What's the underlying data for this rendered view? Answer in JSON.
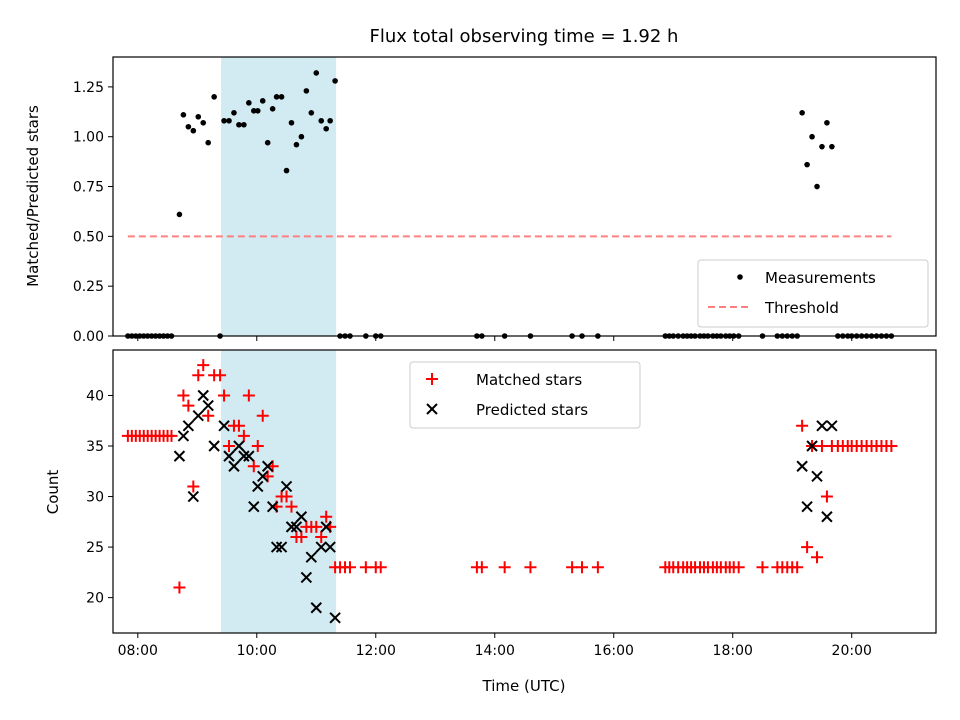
{
  "chart_data": [
    {
      "type": "scatter",
      "title": "Flux total observing time = 1.92 h",
      "xlabel": "",
      "ylabel": "Matched/Predicted stars",
      "ylim": [
        0,
        1.4
      ],
      "xlim": [
        "07:35",
        "21:25"
      ],
      "x_ticks": [
        "08:00",
        "10:00",
        "12:00",
        "14:00",
        "16:00",
        "18:00",
        "20:00"
      ],
      "y_ticks": [
        "0.00",
        "0.25",
        "0.50",
        "0.75",
        "1.00",
        "1.25"
      ],
      "shaded_region": {
        "from": "09:24",
        "to": "11:20",
        "color": "#add8e6"
      },
      "legend_position": "lower right",
      "series": [
        {
          "name": "Measurements",
          "marker": "dot",
          "color": "#000000",
          "points": [
            [
              "07:50",
              0
            ],
            [
              "07:54",
              0
            ],
            [
              "07:58",
              0
            ],
            [
              "08:02",
              0
            ],
            [
              "08:06",
              0
            ],
            [
              "08:10",
              0
            ],
            [
              "08:14",
              0
            ],
            [
              "08:18",
              0
            ],
            [
              "08:22",
              0
            ],
            [
              "08:26",
              0
            ],
            [
              "08:30",
              0
            ],
            [
              "08:34",
              0
            ],
            [
              "08:42",
              0.61
            ],
            [
              "08:46",
              1.11
            ],
            [
              "08:51",
              1.05
            ],
            [
              "08:56",
              1.03
            ],
            [
              "09:01",
              1.1
            ],
            [
              "09:06",
              1.07
            ],
            [
              "09:11",
              0.97
            ],
            [
              "09:17",
              1.2
            ],
            [
              "09:23",
              0
            ],
            [
              "09:27",
              1.08
            ],
            [
              "09:32",
              1.08
            ],
            [
              "09:37",
              1.12
            ],
            [
              "09:42",
              1.06
            ],
            [
              "09:47",
              1.06
            ],
            [
              "09:52",
              1.17
            ],
            [
              "09:57",
              1.13
            ],
            [
              "10:01",
              1.13
            ],
            [
              "10:06",
              1.18
            ],
            [
              "10:11",
              0.97
            ],
            [
              "10:16",
              1.14
            ],
            [
              "10:20",
              1.2
            ],
            [
              "10:25",
              1.2
            ],
            [
              "10:30",
              0.83
            ],
            [
              "10:35",
              1.07
            ],
            [
              "10:40",
              0.96
            ],
            [
              "10:45",
              1.0
            ],
            [
              "10:50",
              1.23
            ],
            [
              "10:55",
              1.12
            ],
            [
              "11:00",
              1.32
            ],
            [
              "11:05",
              1.08
            ],
            [
              "11:10",
              1.04
            ],
            [
              "11:14",
              1.08
            ],
            [
              "11:19",
              1.28
            ],
            [
              "11:24",
              0
            ],
            [
              "11:29",
              0
            ],
            [
              "11:34",
              0
            ],
            [
              "11:50",
              0
            ],
            [
              "12:00",
              0
            ],
            [
              "12:05",
              0
            ],
            [
              "13:42",
              0
            ],
            [
              "13:47",
              0
            ],
            [
              "14:10",
              0
            ],
            [
              "14:36",
              0
            ],
            [
              "15:18",
              0
            ],
            [
              "15:28",
              0
            ],
            [
              "15:44",
              0
            ],
            [
              "16:52",
              0
            ],
            [
              "16:56",
              0
            ],
            [
              "17:00",
              0
            ],
            [
              "17:05",
              0
            ],
            [
              "17:10",
              0
            ],
            [
              "17:14",
              0
            ],
            [
              "17:18",
              0
            ],
            [
              "17:22",
              0
            ],
            [
              "17:27",
              0
            ],
            [
              "17:31",
              0
            ],
            [
              "17:35",
              0
            ],
            [
              "17:40",
              0
            ],
            [
              "17:44",
              0
            ],
            [
              "17:48",
              0
            ],
            [
              "17:53",
              0
            ],
            [
              "17:57",
              0
            ],
            [
              "18:01",
              0
            ],
            [
              "18:06",
              0
            ],
            [
              "18:30",
              0
            ],
            [
              "18:45",
              0
            ],
            [
              "18:50",
              0
            ],
            [
              "18:55",
              0
            ],
            [
              "19:00",
              0
            ],
            [
              "19:05",
              0
            ],
            [
              "19:10",
              1.12
            ],
            [
              "19:15",
              0.86
            ],
            [
              "19:20",
              1.0
            ],
            [
              "19:25",
              0.75
            ],
            [
              "19:30",
              0.95
            ],
            [
              "19:35",
              1.07
            ],
            [
              "19:40",
              0.95
            ],
            [
              "19:46",
              0
            ],
            [
              "19:51",
              0
            ],
            [
              "19:56",
              0
            ],
            [
              "20:00",
              0
            ],
            [
              "20:05",
              0
            ],
            [
              "20:10",
              0
            ],
            [
              "20:15",
              0
            ],
            [
              "20:20",
              0
            ],
            [
              "20:25",
              0
            ],
            [
              "20:30",
              0
            ],
            [
              "20:35",
              0
            ],
            [
              "20:40",
              0
            ]
          ]
        },
        {
          "name": "Threshold",
          "marker": "dashed-line",
          "color": "#ff8080",
          "points": [
            [
              "07:50",
              0.5
            ],
            [
              "20:40",
              0.5
            ]
          ]
        }
      ]
    },
    {
      "type": "scatter",
      "title": "",
      "xlabel": "Time (UTC)",
      "ylabel": "Count",
      "ylim": [
        16.5,
        44.5
      ],
      "xlim": [
        "07:35",
        "21:25"
      ],
      "x_ticks": [
        "08:00",
        "10:00",
        "12:00",
        "14:00",
        "16:00",
        "18:00",
        "20:00"
      ],
      "y_ticks": [
        "20",
        "25",
        "30",
        "35",
        "40"
      ],
      "shaded_region": {
        "from": "09:24",
        "to": "11:20",
        "color": "#add8e6"
      },
      "legend_position": "upper center",
      "series": [
        {
          "name": "Matched stars",
          "marker": "plus",
          "color": "#ff0000",
          "points": [
            [
              "07:50",
              36
            ],
            [
              "07:54",
              36
            ],
            [
              "07:58",
              36
            ],
            [
              "08:02",
              36
            ],
            [
              "08:06",
              36
            ],
            [
              "08:10",
              36
            ],
            [
              "08:14",
              36
            ],
            [
              "08:18",
              36
            ],
            [
              "08:22",
              36
            ],
            [
              "08:26",
              36
            ],
            [
              "08:30",
              36
            ],
            [
              "08:34",
              36
            ],
            [
              "08:42",
              21
            ],
            [
              "08:46",
              40
            ],
            [
              "08:51",
              39
            ],
            [
              "08:56",
              31
            ],
            [
              "09:01",
              42
            ],
            [
              "09:06",
              43
            ],
            [
              "09:11",
              38
            ],
            [
              "09:17",
              42
            ],
            [
              "09:23",
              42
            ],
            [
              "09:27",
              40
            ],
            [
              "09:32",
              35
            ],
            [
              "09:37",
              37
            ],
            [
              "09:42",
              37
            ],
            [
              "09:47",
              36
            ],
            [
              "09:52",
              40
            ],
            [
              "09:57",
              33
            ],
            [
              "10:01",
              35
            ],
            [
              "10:06",
              38
            ],
            [
              "10:11",
              32
            ],
            [
              "10:16",
              33
            ],
            [
              "10:20",
              29
            ],
            [
              "10:25",
              30
            ],
            [
              "10:30",
              30
            ],
            [
              "10:35",
              29
            ],
            [
              "10:40",
              26
            ],
            [
              "10:45",
              26
            ],
            [
              "10:50",
              27
            ],
            [
              "10:55",
              27
            ],
            [
              "11:00",
              27
            ],
            [
              "11:05",
              26
            ],
            [
              "11:10",
              28
            ],
            [
              "11:14",
              27
            ],
            [
              "11:19",
              23
            ],
            [
              "11:24",
              23
            ],
            [
              "11:29",
              23
            ],
            [
              "11:34",
              23
            ],
            [
              "11:50",
              23
            ],
            [
              "12:00",
              23
            ],
            [
              "12:05",
              23
            ],
            [
              "13:42",
              23
            ],
            [
              "13:47",
              23
            ],
            [
              "14:10",
              23
            ],
            [
              "14:36",
              23
            ],
            [
              "15:18",
              23
            ],
            [
              "15:28",
              23
            ],
            [
              "15:44",
              23
            ],
            [
              "16:52",
              23
            ],
            [
              "16:56",
              23
            ],
            [
              "17:00",
              23
            ],
            [
              "17:05",
              23
            ],
            [
              "17:10",
              23
            ],
            [
              "17:14",
              23
            ],
            [
              "17:18",
              23
            ],
            [
              "17:22",
              23
            ],
            [
              "17:27",
              23
            ],
            [
              "17:31",
              23
            ],
            [
              "17:35",
              23
            ],
            [
              "17:40",
              23
            ],
            [
              "17:44",
              23
            ],
            [
              "17:48",
              23
            ],
            [
              "17:53",
              23
            ],
            [
              "17:57",
              23
            ],
            [
              "18:01",
              23
            ],
            [
              "18:06",
              23
            ],
            [
              "18:30",
              23
            ],
            [
              "18:45",
              23
            ],
            [
              "18:50",
              23
            ],
            [
              "18:55",
              23
            ],
            [
              "19:00",
              23
            ],
            [
              "19:05",
              23
            ],
            [
              "19:10",
              37
            ],
            [
              "19:15",
              25
            ],
            [
              "19:20",
              35
            ],
            [
              "19:25",
              24
            ],
            [
              "19:30",
              35
            ],
            [
              "19:35",
              30
            ],
            [
              "19:40",
              35
            ],
            [
              "19:46",
              35
            ],
            [
              "19:51",
              35
            ],
            [
              "19:56",
              35
            ],
            [
              "20:00",
              35
            ],
            [
              "20:05",
              35
            ],
            [
              "20:10",
              35
            ],
            [
              "20:15",
              35
            ],
            [
              "20:20",
              35
            ],
            [
              "20:25",
              35
            ],
            [
              "20:30",
              35
            ],
            [
              "20:35",
              35
            ],
            [
              "20:40",
              35
            ]
          ]
        },
        {
          "name": "Predicted stars",
          "marker": "x",
          "color": "#000000",
          "points": [
            [
              "08:42",
              34
            ],
            [
              "08:46",
              36
            ],
            [
              "08:51",
              37
            ],
            [
              "08:56",
              30
            ],
            [
              "09:01",
              38
            ],
            [
              "09:06",
              40
            ],
            [
              "09:11",
              39
            ],
            [
              "09:17",
              35
            ],
            [
              "09:27",
              37
            ],
            [
              "09:32",
              34
            ],
            [
              "09:37",
              33
            ],
            [
              "09:42",
              35
            ],
            [
              "09:47",
              34
            ],
            [
              "09:52",
              34
            ],
            [
              "09:57",
              29
            ],
            [
              "10:01",
              31
            ],
            [
              "10:06",
              32
            ],
            [
              "10:11",
              33
            ],
            [
              "10:16",
              29
            ],
            [
              "10:20",
              25
            ],
            [
              "10:25",
              25
            ],
            [
              "10:30",
              31
            ],
            [
              "10:35",
              27
            ],
            [
              "10:40",
              27
            ],
            [
              "10:45",
              28
            ],
            [
              "10:50",
              22
            ],
            [
              "10:55",
              24
            ],
            [
              "11:00",
              19
            ],
            [
              "11:05",
              25
            ],
            [
              "11:10",
              27
            ],
            [
              "11:14",
              25
            ],
            [
              "11:19",
              18
            ],
            [
              "19:10",
              33
            ],
            [
              "19:15",
              29
            ],
            [
              "19:20",
              35
            ],
            [
              "19:25",
              32
            ],
            [
              "19:30",
              37
            ],
            [
              "19:35",
              28
            ],
            [
              "19:40",
              37
            ]
          ]
        }
      ]
    }
  ]
}
